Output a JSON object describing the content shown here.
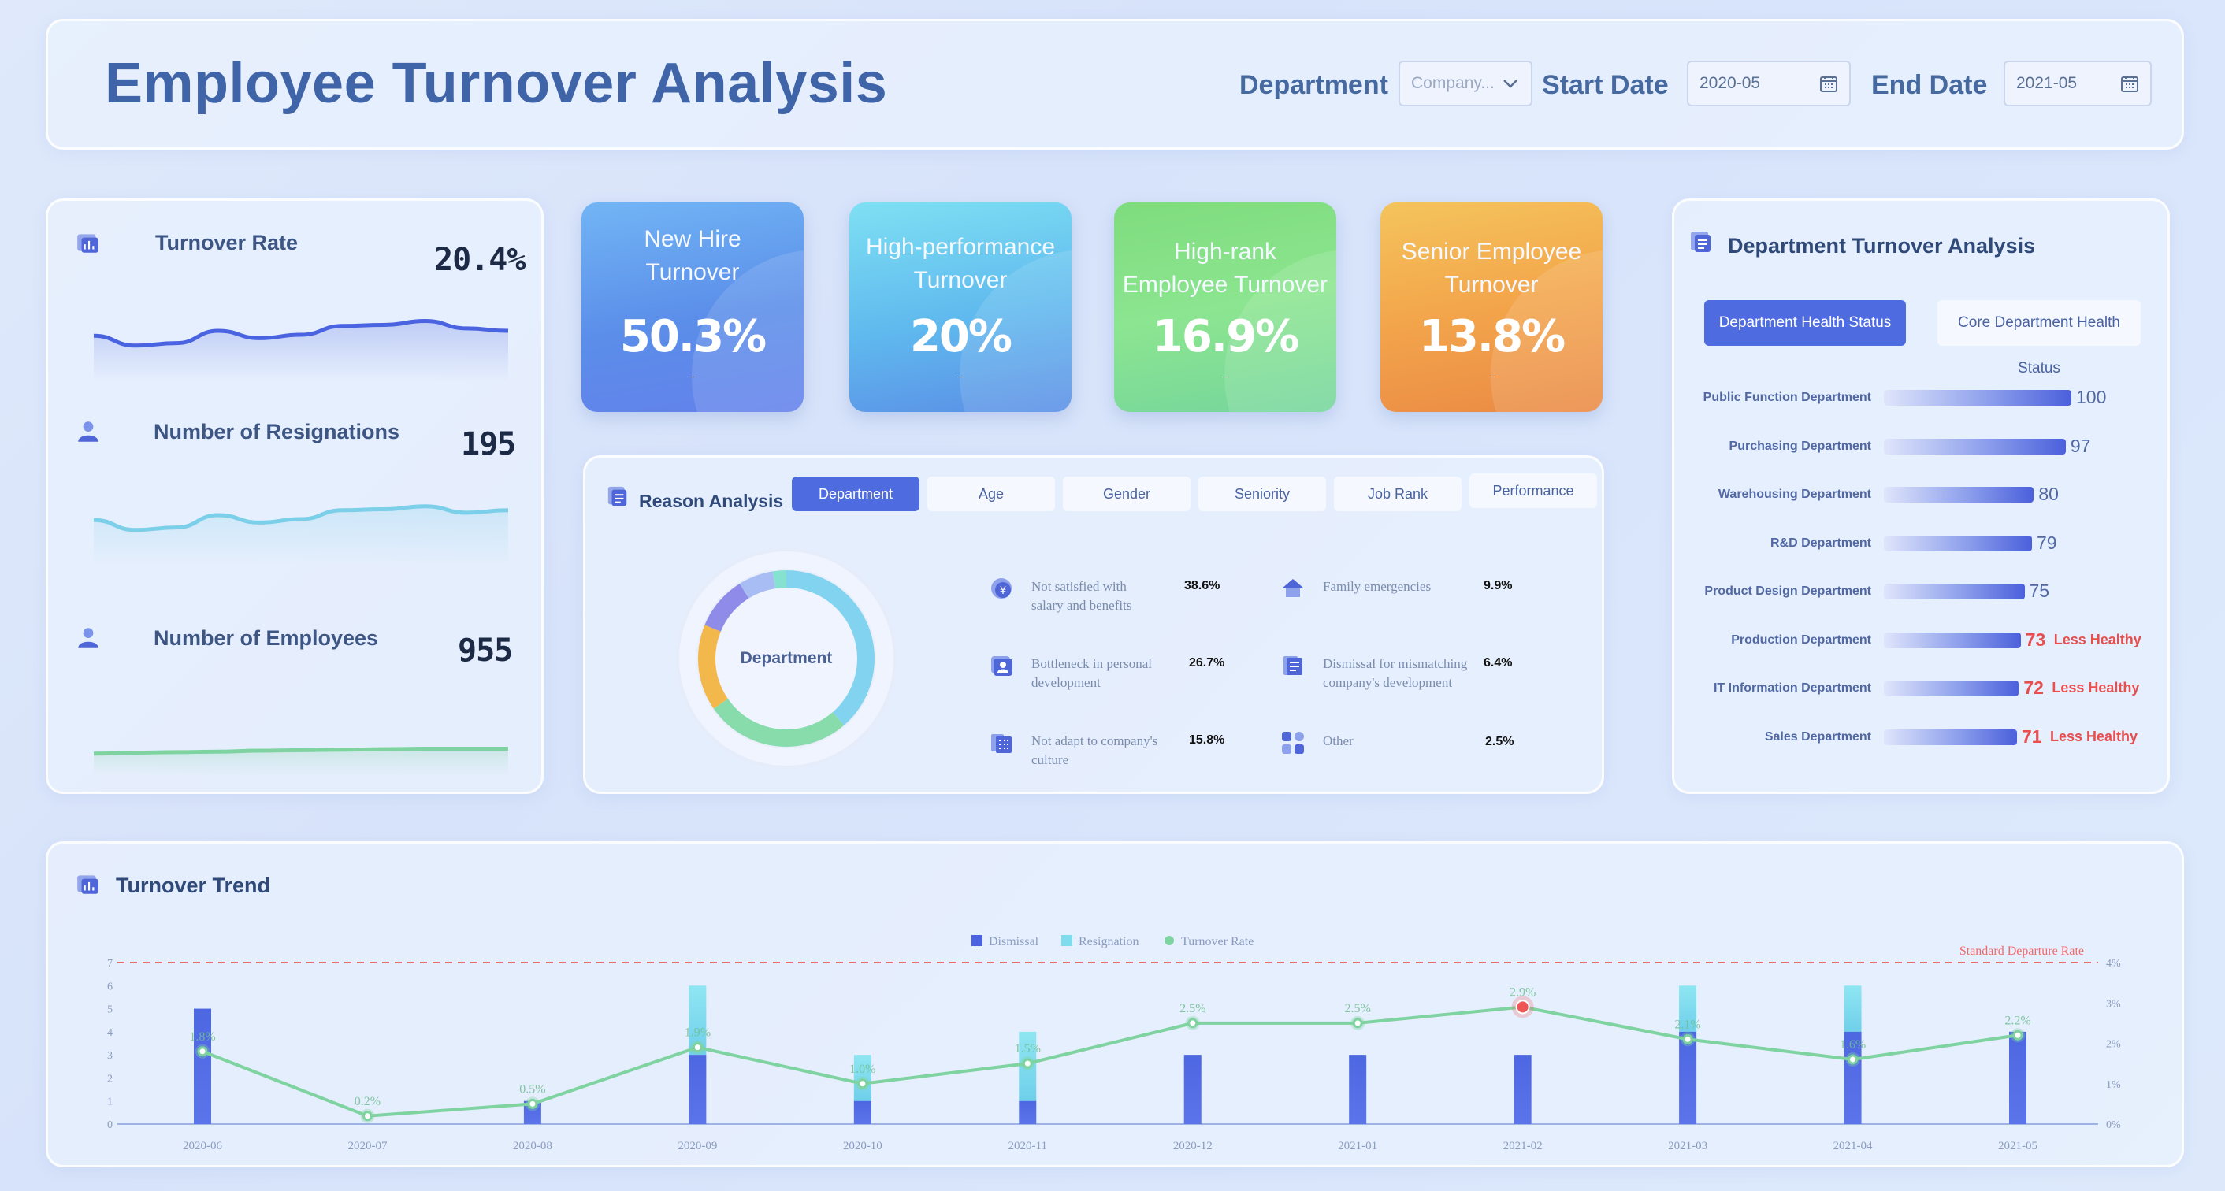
{
  "header": {
    "title": "Employee Turnover Analysis",
    "department_label": "Department",
    "department_value": "Company...",
    "start_label": "Start Date",
    "start_value": "2020-05",
    "end_label": "End Date",
    "end_value": "2021-05"
  },
  "metrics": [
    {
      "label": "Turnover Rate",
      "value": "20.4%"
    },
    {
      "label": "Number of Resignations",
      "value": "195"
    },
    {
      "label": "Number of Employees",
      "value": "955"
    }
  ],
  "kpis": [
    {
      "title_line1": "New Hire",
      "title_line2": "Turnover",
      "value": "50.3%",
      "dash": "–"
    },
    {
      "title_line1": "High-performance",
      "title_line2": "Turnover",
      "value": "20%",
      "dash": "–"
    },
    {
      "title_line1": "High-rank",
      "title_line2": "Employee Turnover",
      "value": "16.9%",
      "dash": "–"
    },
    {
      "title_line1": "Senior Employee",
      "title_line2": "Turnover",
      "value": "13.8%",
      "dash": "–"
    }
  ],
  "reason": {
    "title": "Reason Analysis",
    "tabs": [
      "Department",
      "Age",
      "Gender",
      "Seniority",
      "Job Rank",
      "Performance"
    ],
    "donut_label": "Department",
    "items": [
      {
        "line1": "Not satisfied with",
        "line2": "salary and benefits",
        "pct": "38.6%"
      },
      {
        "line1": "Family emergencies",
        "line2": "",
        "pct": "9.9%"
      },
      {
        "line1": "Bottleneck in personal",
        "line2": "development",
        "pct": "26.7%"
      },
      {
        "line1": "Dismissal for mismatching",
        "line2": "company's development",
        "pct": "6.4%"
      },
      {
        "line1": "Not adapt to company's",
        "line2": "culture",
        "pct": "15.8%"
      },
      {
        "line1": "Other",
        "line2": "",
        "pct": "2.5%"
      }
    ]
  },
  "department": {
    "title": "Department Turnover Analysis",
    "tab_active": "Department Health Status",
    "tab_inactive": "Core Department Health Status",
    "rows": [
      {
        "name": "Public Function Department",
        "value": 100,
        "warn": ""
      },
      {
        "name": "Purchasing Department",
        "value": 97,
        "warn": ""
      },
      {
        "name": "Warehousing Department",
        "value": 80,
        "warn": ""
      },
      {
        "name": "R&D Department",
        "value": 79,
        "warn": ""
      },
      {
        "name": "Product Design Department",
        "value": 75,
        "warn": ""
      },
      {
        "name": "Production Department",
        "value": 73,
        "warn": "Less Healthy"
      },
      {
        "name": "IT Information Department",
        "value": 72,
        "warn": "Less Healthy"
      },
      {
        "name": "Sales Department",
        "value": 71,
        "warn": "Less Healthy"
      }
    ]
  },
  "colors": {
    "dismissal": "#4a63e0",
    "resignation": "#7fdcef",
    "turnover": "#7ed3a0",
    "standard": "#ef6a6a"
  },
  "chart_data": {
    "type": "bar",
    "title": "Turnover Trend",
    "legend": [
      "Dismissal",
      "Resignation",
      "Turnover Rate"
    ],
    "standard_label": "Standard Departure Rate",
    "categories": [
      "2020-06",
      "2020-07",
      "2020-08",
      "2020-09",
      "2020-10",
      "2020-11",
      "2020-12",
      "2021-01",
      "2021-02",
      "2021-03",
      "2021-04",
      "2021-05"
    ],
    "series": [
      {
        "name": "Dismissal",
        "values": [
          5,
          0,
          1,
          3,
          1,
          1,
          3,
          3,
          3,
          4,
          4,
          4
        ]
      },
      {
        "name": "Resignation",
        "values": [
          0,
          0,
          0,
          3,
          2,
          3,
          0,
          0,
          0,
          2,
          2,
          0
        ]
      },
      {
        "name": "Turnover Rate",
        "values": [
          1.8,
          0.2,
          0.5,
          1.9,
          1.0,
          1.5,
          2.5,
          2.5,
          2.9,
          2.1,
          1.6,
          2.2
        ]
      }
    ],
    "rate_labels": [
      "1.8%",
      "0.2%",
      "0.5%",
      "1.9%",
      "1.0%",
      "1.5%",
      "2.5%",
      "2.5%",
      "2.9%",
      "2.1%",
      "1.6%",
      "2.2%"
    ],
    "ylim_left": [
      0,
      7
    ],
    "yticks_left": [
      "0",
      "1",
      "2",
      "3",
      "4",
      "5",
      "6",
      "7"
    ],
    "ylim_right": [
      0,
      4
    ],
    "yticks_right": [
      "0%",
      "1%",
      "2%",
      "3%",
      "4%"
    ],
    "standard_rate": 4
  },
  "sparklines": [
    {
      "name": "turnover-rate",
      "values": [
        3,
        1,
        1.5,
        4,
        2.5,
        3.2,
        5,
        5.2,
        6,
        4.5,
        4
      ]
    },
    {
      "name": "resignations",
      "values": [
        3,
        1,
        1.5,
        4,
        2.5,
        3.2,
        5,
        5.2,
        5.8,
        4.5,
        5
      ]
    },
    {
      "name": "employees",
      "values": [
        1,
        1.2,
        1.3,
        1.4,
        1.6,
        1.7,
        1.8,
        1.9,
        2,
        2,
        2
      ]
    }
  ]
}
